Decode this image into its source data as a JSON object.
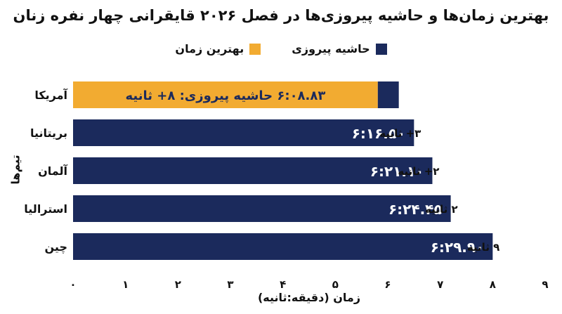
{
  "chart_data": {
    "type": "bar",
    "orientation": "horizontal",
    "title": "بهترین زمان‌ها و حاشیه پیروزی‌ها در فصل ۲۰۲۶ قایقرانی چهار نفره زنان",
    "xlabel": "زمان (دقیقه:ثانیه)",
    "ylabel": "تیم‌ها",
    "xlim": [
      0,
      9
    ],
    "xticks": [
      0,
      1,
      2,
      3,
      4,
      5,
      6,
      7,
      8,
      9
    ],
    "xtick_labels": [
      "۰",
      "۱",
      "۲",
      "۳",
      "۴",
      "۵",
      "۶",
      "۷",
      "۸",
      "۹"
    ],
    "grid": false,
    "legend_position": "top-center",
    "legend": [
      {
        "name": "حاشیه پیروزی",
        "color": "#1b2a5c"
      },
      {
        "name": "بهترین زمان",
        "color": "#f2ab31"
      }
    ],
    "categories": [
      "آمریکا",
      "بریتانیا",
      "آلمان",
      "استرالیا",
      "چین"
    ],
    "series": [
      {
        "name": "بهترین زمان",
        "values": [
          5.81,
          0,
          0,
          0,
          0
        ],
        "color": "#f2ab31"
      },
      {
        "name": "حاشیه پیروزی",
        "values": [
          0.4,
          6.5,
          6.85,
          7.2,
          8.0
        ],
        "color": "#1b2a5c"
      }
    ],
    "bar_labels": [
      "۶:۰۸.۸۳ حاشیه پیروزی: ۸+ ثانیه",
      "۶:۱۶.۵۰",
      "۶:۲۱.۱۰",
      "۶:۲۴.۴۵",
      "۶:۲۹.۹۰"
    ],
    "margin_labels": [
      "",
      "۳+ ثانیه",
      "۲+ ثانیه",
      "۲ ثانیه",
      "۹ ثانیه"
    ]
  }
}
